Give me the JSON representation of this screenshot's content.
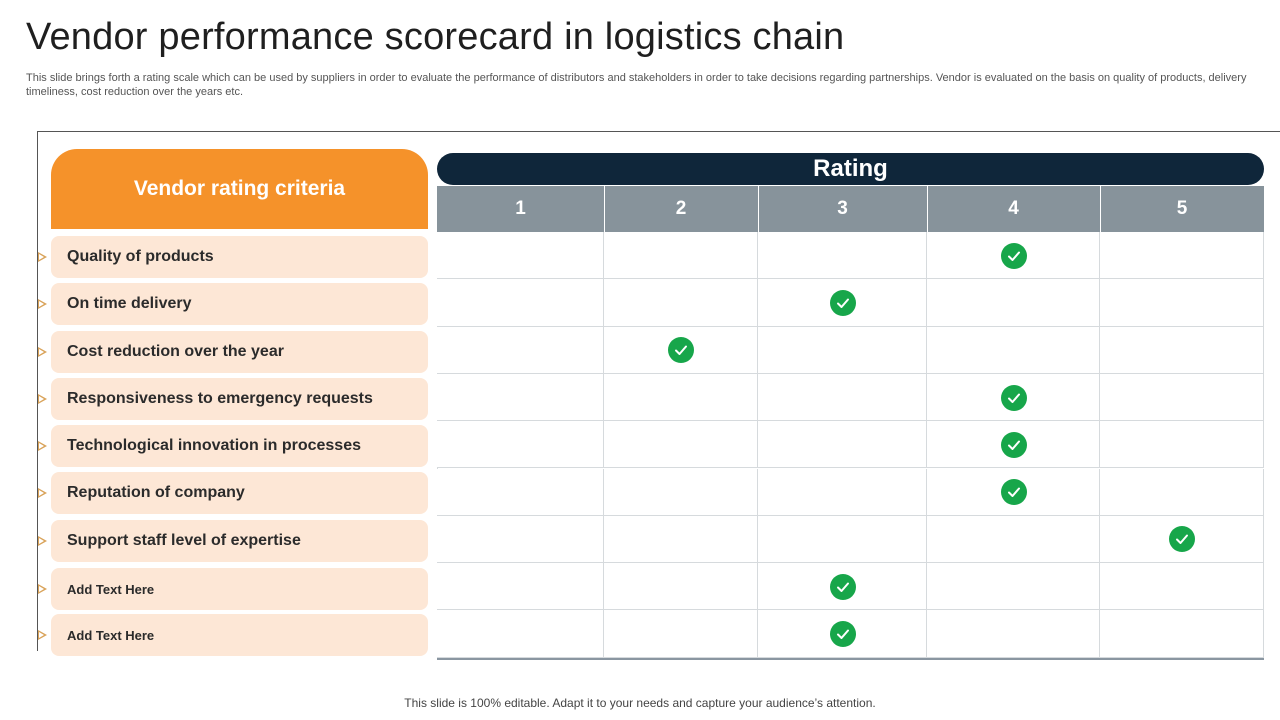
{
  "slide": {
    "title": "Vendor performance scorecard in logistics chain",
    "description": "This slide brings forth a rating scale which can be used by suppliers in order to evaluate the performance of distributors and stakeholders in order to take decisions regarding partnerships. Vendor is evaluated on the basis on quality of products, delivery timeliness, cost reduction over the years etc.",
    "footer": "This slide is 100% editable. Adapt it to your needs and capture your audience’s attention."
  },
  "scorecard": {
    "criteria_header": "Vendor rating criteria",
    "rating_header": "Rating",
    "rating_columns": [
      "1",
      "2",
      "3",
      "4",
      "5"
    ],
    "criteria": [
      {
        "label": "Quality of products",
        "rating": 4
      },
      {
        "label": "On time delivery",
        "rating": 3
      },
      {
        "label": "Cost reduction over the year",
        "rating": 2
      },
      {
        "label": "Responsiveness to emergency requests",
        "rating": 4
      },
      {
        "label": "Technological innovation in processes",
        "rating": 4
      },
      {
        "label": "Reputation of company",
        "rating": 4
      },
      {
        "label": "Support staff level of expertise",
        "rating": 5
      },
      {
        "label": "Add Text Here",
        "rating": 3
      },
      {
        "label": "Add Text Here",
        "rating": 3
      }
    ],
    "colors": {
      "accent": "#f5922a",
      "row_fill": "#fde7d6",
      "rating_bar": "#0f263a",
      "column_header": "#87939b",
      "check": "#17a64a"
    },
    "icon": "check-circle-icon"
  }
}
